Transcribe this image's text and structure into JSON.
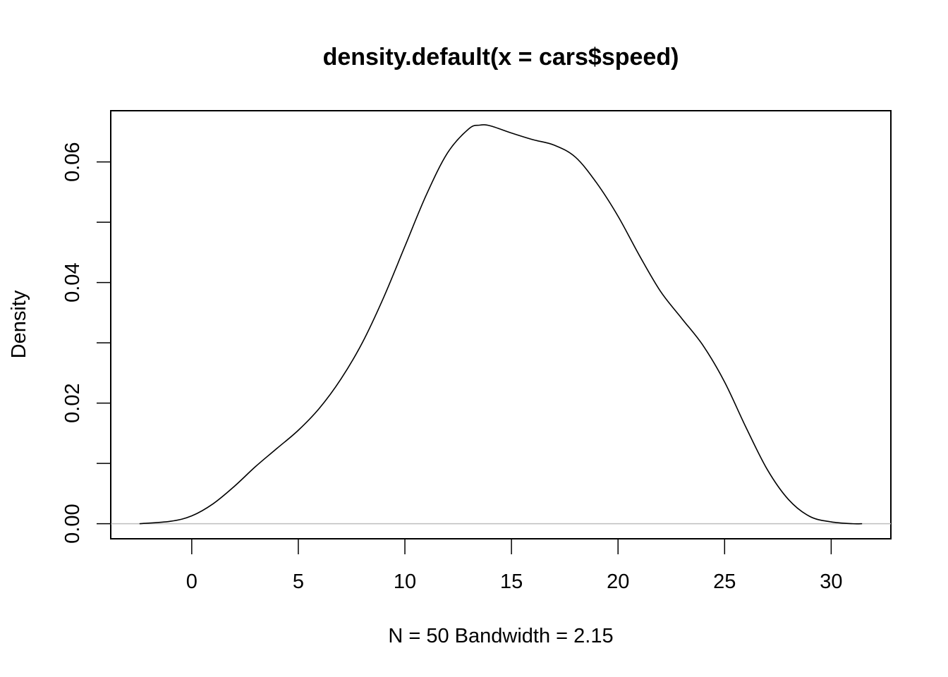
{
  "chart_data": {
    "type": "line",
    "title": "density.default(x = cars$speed)",
    "xlabel": "N = 50   Bandwidth = 2.15",
    "ylabel": "Density",
    "xlim": [
      -3.8,
      32.8
    ],
    "ylim": [
      -0.0025,
      0.0685
    ],
    "x_ticks": [
      0,
      5,
      10,
      15,
      20,
      25,
      30
    ],
    "y_ticks": [
      0.0,
      0.01,
      0.02,
      0.03,
      0.04,
      0.05,
      0.06
    ],
    "y_tick_labels": [
      {
        "value": 0.0,
        "label": "0.00"
      },
      {
        "value": 0.02,
        "label": "0.02"
      },
      {
        "value": 0.04,
        "label": "0.04"
      },
      {
        "value": 0.06,
        "label": "0.06"
      }
    ],
    "baseline": {
      "y": 0,
      "color": "#bebebe"
    },
    "grid": false,
    "series": [
      {
        "color": "#000000",
        "x": [
          -2.45,
          -1,
          0,
          1,
          2,
          3,
          4,
          5,
          6,
          7,
          8,
          9,
          10,
          11,
          12,
          13,
          13.5,
          14,
          15,
          16,
          17,
          18,
          19,
          20,
          21,
          22,
          23,
          24,
          25,
          26,
          27,
          28,
          29,
          30,
          31,
          31.45
        ],
        "y": [
          0.0,
          0.0004,
          0.0013,
          0.0033,
          0.0062,
          0.0095,
          0.0125,
          0.0155,
          0.0192,
          0.024,
          0.03,
          0.0375,
          0.046,
          0.0545,
          0.0615,
          0.0655,
          0.0661,
          0.066,
          0.0648,
          0.0637,
          0.0628,
          0.0608,
          0.0565,
          0.051,
          0.0445,
          0.0385,
          0.034,
          0.0295,
          0.0235,
          0.016,
          0.009,
          0.004,
          0.0012,
          0.0003,
          0.0,
          0.0
        ]
      }
    ]
  }
}
